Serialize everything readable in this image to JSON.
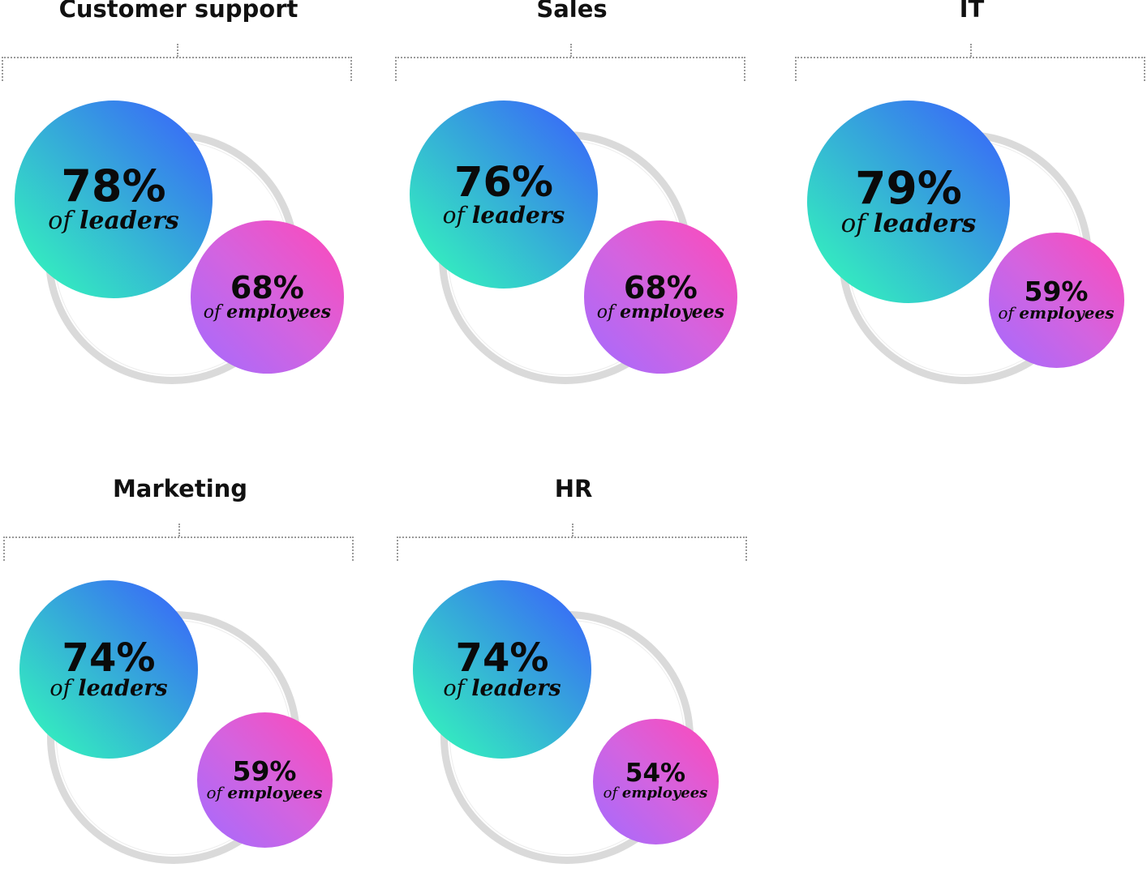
{
  "chart_data": {
    "type": "bubble-comparison",
    "series": [
      {
        "name": "of leaders",
        "color_start": "#34ffb8",
        "color_end": "#3a5cff"
      },
      {
        "name": "of employees",
        "color_start": "#a36bff",
        "color_end": "#ff48b8"
      }
    ],
    "label_prefix": "of",
    "panels": [
      {
        "category": "Customer support",
        "leaders": 78,
        "employees": 68
      },
      {
        "category": "Sales",
        "leaders": 76,
        "employees": 68
      },
      {
        "category": "IT",
        "leaders": 79,
        "employees": 59
      },
      {
        "category": "Marketing",
        "leaders": 74,
        "employees": 59
      },
      {
        "category": "HR",
        "leaders": 74,
        "employees": 54
      }
    ],
    "unit": "%",
    "leaders_label": "leaders",
    "employees_label": "employees"
  }
}
